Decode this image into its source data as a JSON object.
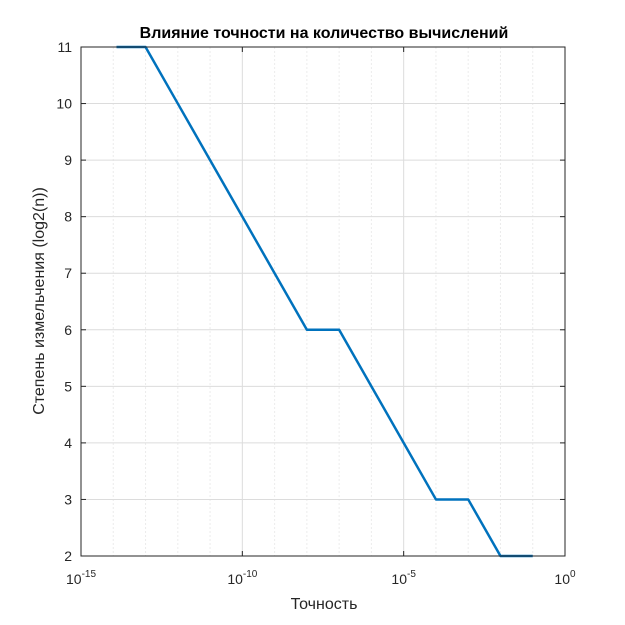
{
  "chart_data": {
    "type": "line",
    "title": "Влияние точности на количество вычислений",
    "xlabel": "Точность",
    "ylabel": "Степень измельчения (log2(n))",
    "xscale": "log",
    "xlim_exp": [
      -15,
      0
    ],
    "ylim": [
      2,
      11
    ],
    "grid": true,
    "x_ticks": [
      {
        "base": "10",
        "exp": "-15"
      },
      {
        "base": "10",
        "exp": "-10"
      },
      {
        "base": "10",
        "exp": "-5"
      },
      {
        "base": "10",
        "exp": "0"
      }
    ],
    "y_ticks": [
      "2",
      "3",
      "4",
      "5",
      "6",
      "7",
      "8",
      "9",
      "10",
      "11"
    ],
    "series": [
      {
        "color": "#0072BD",
        "x_exp": [
          -13.9,
          -13.0,
          -12.0,
          -11.0,
          -10.0,
          -9.0,
          -8.0,
          -7.0,
          -6.0,
          -5.0,
          -4.0,
          -3.0,
          -2.0,
          -1.0
        ],
        "y": [
          11,
          11,
          10,
          9,
          8,
          7,
          6,
          6,
          5,
          4,
          3,
          3,
          2,
          2
        ]
      }
    ]
  }
}
